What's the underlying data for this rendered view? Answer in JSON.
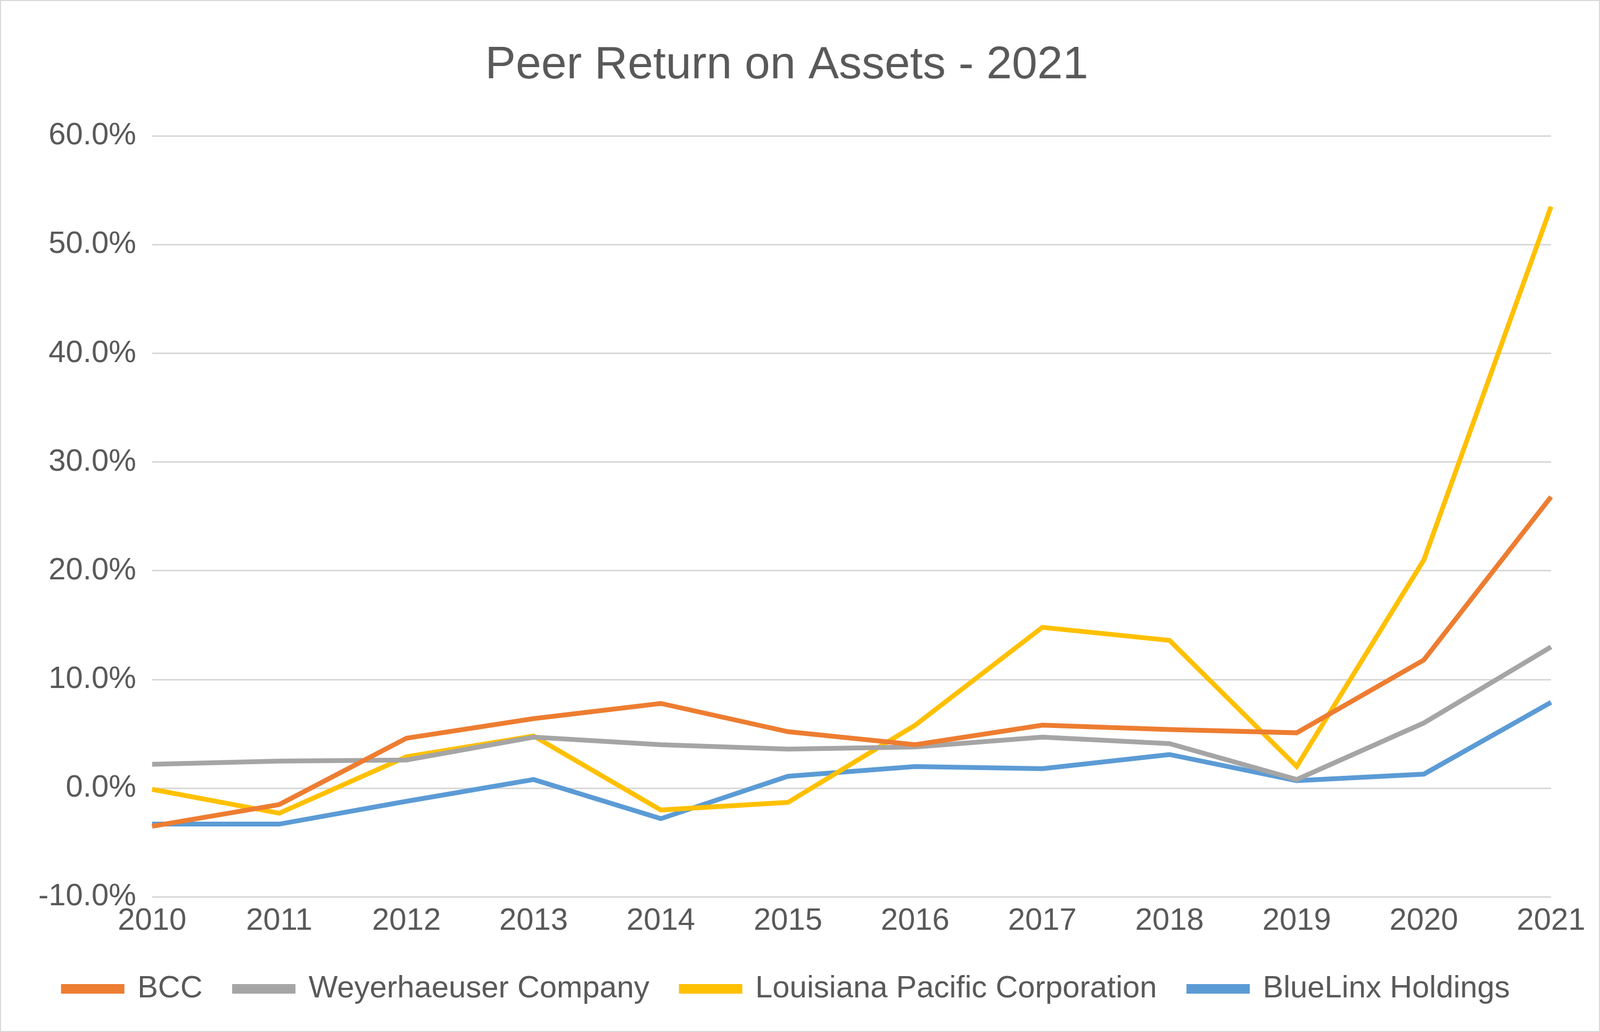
{
  "chart_data": {
    "type": "line",
    "title": "Peer Return on Assets - 2021",
    "categories": [
      "2010",
      "2011",
      "2012",
      "2013",
      "2014",
      "2015",
      "2016",
      "2017",
      "2018",
      "2019",
      "2020",
      "2021"
    ],
    "series": [
      {
        "name": "BCC",
        "color": "#ED7D31",
        "values": [
          -3.5,
          -1.5,
          4.6,
          6.4,
          7.8,
          5.2,
          4.0,
          5.8,
          5.4,
          5.1,
          11.8,
          26.8
        ]
      },
      {
        "name": "Weyerhaeuser Company",
        "color": "#A5A5A5",
        "values": [
          2.2,
          2.5,
          2.6,
          4.7,
          4.0,
          3.6,
          3.8,
          4.7,
          4.1,
          0.8,
          6.0,
          13.0
        ]
      },
      {
        "name": "Louisiana Pacific Corporation",
        "color": "#FFC000",
        "values": [
          -0.1,
          -2.3,
          2.9,
          4.8,
          -2.0,
          -1.3,
          5.8,
          14.8,
          13.6,
          2.0,
          21.0,
          53.5
        ]
      },
      {
        "name": "BlueLinx Holdings",
        "color": "#5B9BD5",
        "values": [
          -3.3,
          -3.3,
          -1.2,
          0.8,
          -2.8,
          1.1,
          2.0,
          1.8,
          3.1,
          0.7,
          1.3,
          7.9
        ]
      }
    ],
    "ylim": [
      -10,
      60
    ],
    "yticks": [
      {
        "value": -10,
        "label": "-10.0%"
      },
      {
        "value": 0,
        "label": "0.0%"
      },
      {
        "value": 10,
        "label": "10.0%"
      },
      {
        "value": 20,
        "label": "20.0%"
      },
      {
        "value": 30,
        "label": "30.0%"
      },
      {
        "value": 40,
        "label": "40.0%"
      },
      {
        "value": 50,
        "label": "50.0%"
      },
      {
        "value": 60,
        "label": "60.0%"
      }
    ],
    "grid": true,
    "legend": "bottom"
  }
}
